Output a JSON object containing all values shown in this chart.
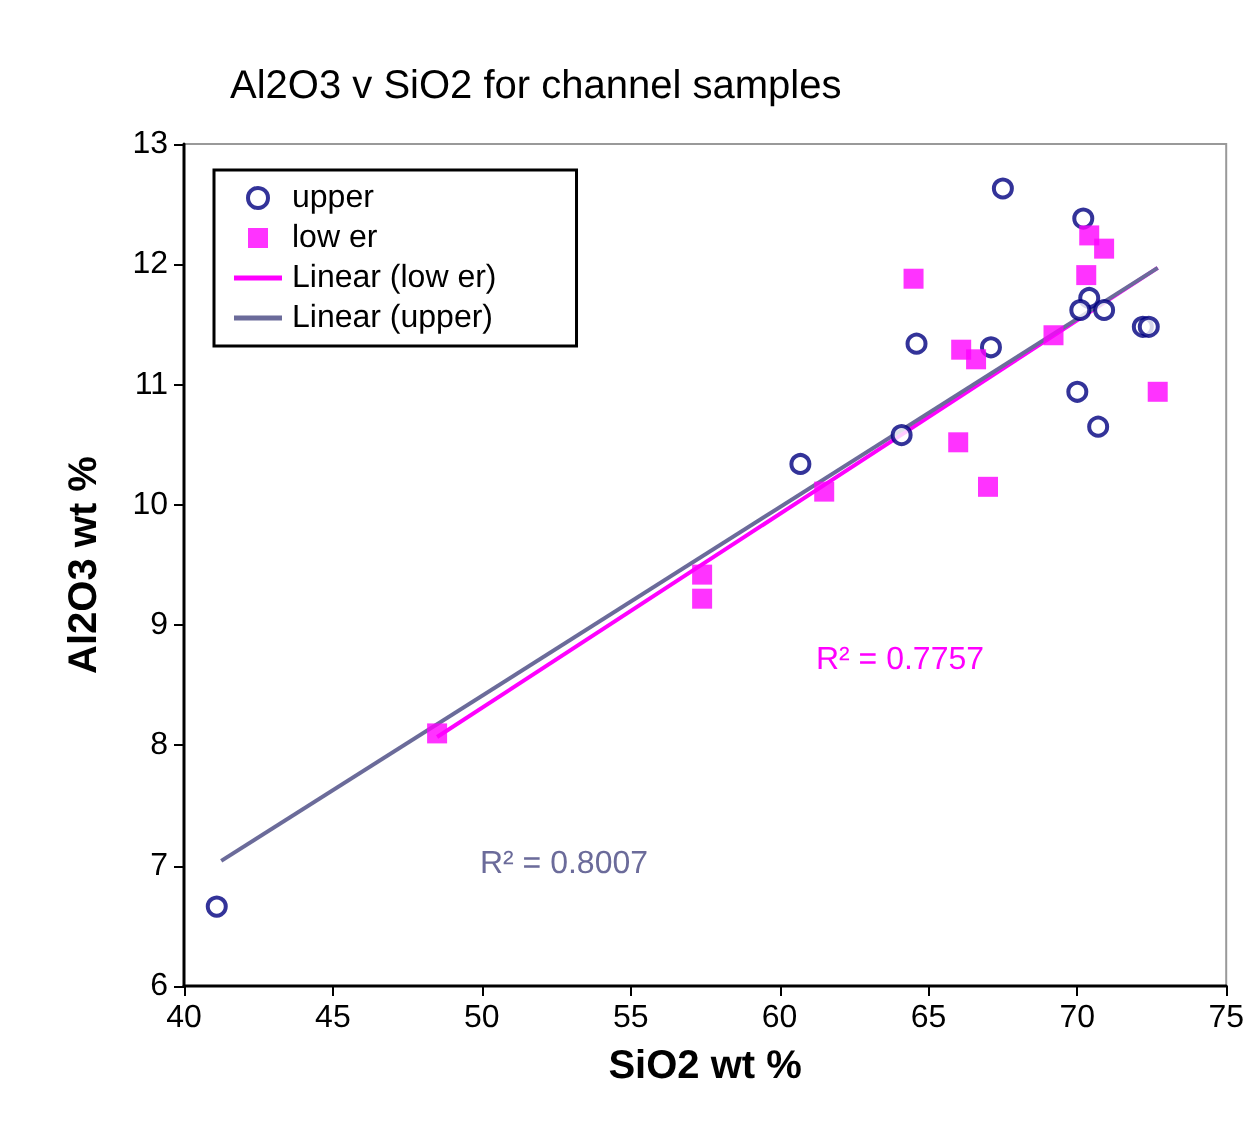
{
  "chart_data": {
    "type": "scatter",
    "title": "Al2O3 v SiO2 for channel samples",
    "xlabel": "SiO2 wt %",
    "ylabel": "Al2O3 wt %",
    "xlim": [
      40,
      75
    ],
    "xticks": [
      40,
      45,
      50,
      55,
      60,
      65,
      70,
      75
    ],
    "ylim": [
      6,
      13
    ],
    "yticks": [
      6,
      7,
      8,
      9,
      10,
      11,
      12,
      13
    ],
    "grid": false,
    "legend": "top left",
    "series": [
      {
        "name": "upper",
        "color": "#000080",
        "marker": "circle",
        "x": [
          41.1,
          60.7,
          64.1,
          64.6,
          67.5,
          67.1,
          70.2,
          70.4,
          70.1,
          70.9,
          72.2,
          72.4,
          70.0,
          70.7
        ],
        "values": [
          6.66,
          10.34,
          10.58,
          11.34,
          12.63,
          11.31,
          12.38,
          11.72,
          11.62,
          11.62,
          11.48,
          11.48,
          10.94,
          10.65
        ]
      },
      {
        "name": "low er",
        "color": "#ff00ff",
        "marker": "square",
        "x": [
          48.5,
          57.4,
          57.4,
          61.5,
          64.5,
          66.1,
          66.6,
          66.0,
          67.0,
          69.2,
          70.4,
          70.9,
          70.3,
          72.7
        ],
        "values": [
          8.1,
          9.42,
          9.22,
          10.11,
          11.88,
          11.29,
          11.21,
          10.52,
          10.15,
          11.41,
          12.24,
          12.13,
          11.91,
          10.94
        ]
      },
      {
        "name": "Linear (low er)",
        "type": "line",
        "color": "#ff00ff",
        "marker": "none",
        "line_style": "solid",
        "x": [
          48.5,
          72.7
        ],
        "values": [
          8.07,
          11.97
        ]
      },
      {
        "name": "Linear (upper)",
        "type": "line",
        "color": "#6b6b9a",
        "marker": "none",
        "line_style": "solid",
        "x": [
          41.25,
          72.7
        ],
        "values": [
          7.04,
          11.97
        ]
      }
    ],
    "annotations": [
      "R² = 0.7757",
      "R² = 0.8007"
    ]
  }
}
